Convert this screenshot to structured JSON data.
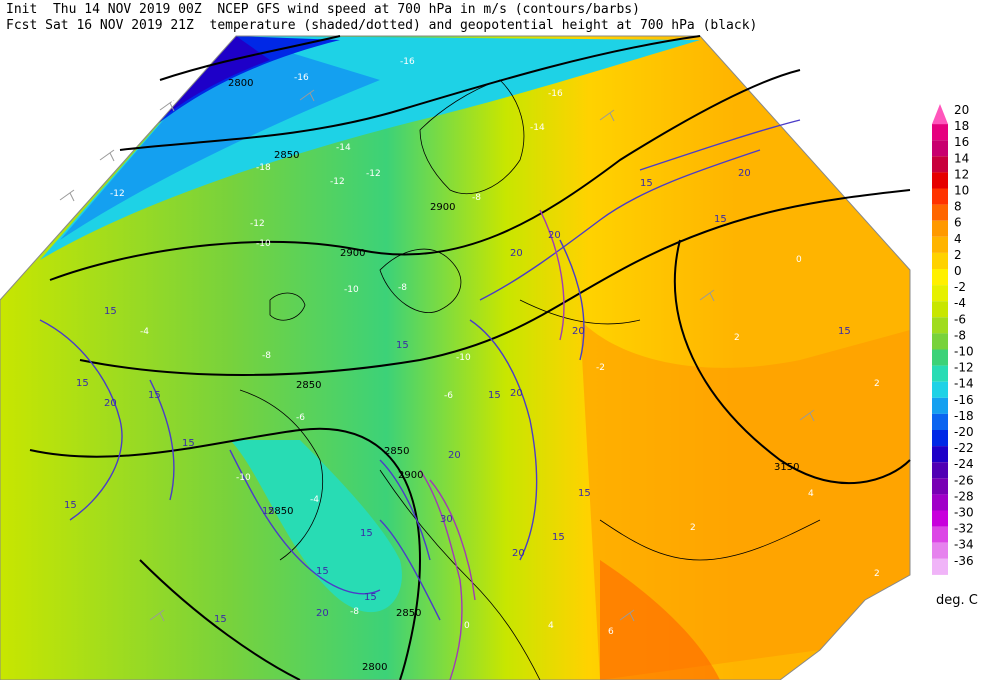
{
  "header": {
    "line1": "Init  Thu 14 NOV 2019 00Z  NCEP GFS wind speed at 700 hPa in m/s (contours/barbs)",
    "line2": "Fcst Sat 16 NOV 2019 21Z  temperature (shaded/dotted) and geopotential height at 700 hPa (black)"
  },
  "legend": {
    "values": [
      "20",
      "18",
      "16",
      "14",
      "12",
      "10",
      "8",
      "6",
      "4",
      "2",
      "0",
      "-2",
      "-4",
      "-6",
      "-8",
      "-10",
      "-12",
      "-14",
      "-16",
      "-18",
      "-20",
      "-22",
      "-24",
      "-26",
      "-28",
      "-30",
      "-32",
      "-34",
      "-36"
    ],
    "colors": [
      "#ff55bb",
      "#e6007e",
      "#c8006e",
      "#c8003c",
      "#e60000",
      "#ff3300",
      "#ff6600",
      "#ff9900",
      "#ffb400",
      "#ffd200",
      "#fff000",
      "#e6f000",
      "#c8e600",
      "#a0dc1e",
      "#78d23c",
      "#3cd278",
      "#28dcb4",
      "#1ed2e6",
      "#14a0f0",
      "#0a64f0",
      "#0028e6",
      "#1e00c8",
      "#5000b4",
      "#7800b4",
      "#a000c8",
      "#c800dc",
      "#dc46e6",
      "#e682ee",
      "#f0b4f8"
    ],
    "units": "deg. C"
  },
  "map": {
    "height_labels": [
      "2800",
      "2850",
      "2900",
      "2900",
      "2850",
      "2850",
      "2900",
      "3150",
      "2850",
      "2850",
      "2800"
    ],
    "wind_labels": [
      "15",
      "15",
      "15",
      "15",
      "20",
      "15",
      "15",
      "15",
      "15",
      "15",
      "20",
      "20",
      "20",
      "20",
      "20",
      "15",
      "15",
      "15",
      "20",
      "30",
      "20",
      "15",
      "15",
      "15",
      "20",
      "15",
      "15"
    ],
    "temp_labels": [
      "-16",
      "-16",
      "-16",
      "-14",
      "-12",
      "-12",
      "-12",
      "-12",
      "-10",
      "-10",
      "-8",
      "-8",
      "-8",
      "-6",
      "-4",
      "-2",
      "0",
      "2",
      "2",
      "4",
      "-4",
      "-10",
      "-8",
      "-6",
      "-10",
      "0",
      "4",
      "6",
      "2",
      "2",
      "-12",
      "-14",
      "-18"
    ]
  }
}
